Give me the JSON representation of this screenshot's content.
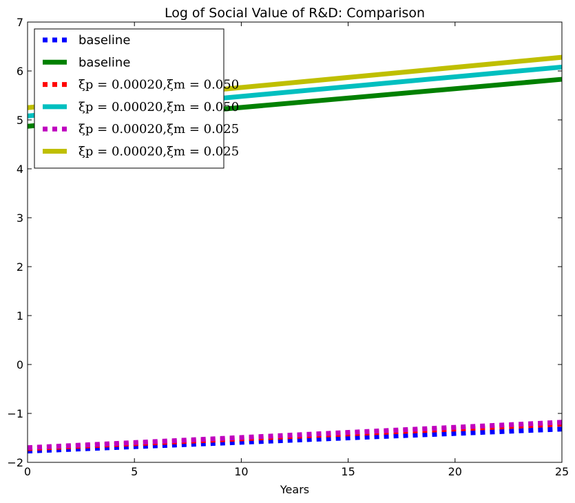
{
  "chart_data": {
    "type": "line",
    "title": "Log of Social Value of R&D: Comparison",
    "xlabel": "Years",
    "ylabel": "",
    "xlim": [
      0,
      25
    ],
    "ylim": [
      -2,
      7
    ],
    "xticks": [
      0,
      5,
      10,
      15,
      20,
      25
    ],
    "yticks": [
      -2,
      -1,
      0,
      1,
      2,
      3,
      4,
      5,
      6,
      7
    ],
    "grid": false,
    "legend_position": "top-left",
    "series": [
      {
        "name": "baseline",
        "style": "dotted",
        "color": "#0000ff",
        "x": [
          0,
          25
        ],
        "y": [
          -1.77,
          -1.32
        ]
      },
      {
        "name": "baseline",
        "style": "solid",
        "color": "#008000",
        "x": [
          0,
          25
        ],
        "y": [
          4.87,
          5.83
        ]
      },
      {
        "name": "ξp = 0.00020,ξm = 0.050",
        "style": "dotted",
        "color": "#ff0000",
        "x": [
          0,
          25
        ],
        "y": [
          -1.72,
          -1.22
        ]
      },
      {
        "name": "ξp = 0.00020,ξm = 0.050",
        "style": "solid",
        "color": "#00bfbf",
        "x": [
          0,
          25
        ],
        "y": [
          5.08,
          6.08
        ]
      },
      {
        "name": "ξp = 0.00020,ξm = 0.025",
        "style": "dotted",
        "color": "#bf00bf",
        "x": [
          0,
          25
        ],
        "y": [
          -1.7,
          -1.18
        ]
      },
      {
        "name": "ξp = 0.00020,ξm = 0.025",
        "style": "solid",
        "color": "#bfbf00",
        "x": [
          0,
          25
        ],
        "y": [
          5.25,
          6.28
        ]
      }
    ]
  }
}
